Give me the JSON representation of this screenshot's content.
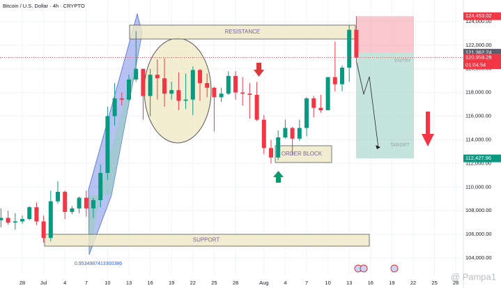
{
  "chart_data": {
    "type": "candlestick",
    "title": "Bitcoin / U.S. Dollar · 4h · CRYPTO",
    "x": [
      "Jun 25",
      "Jun 26",
      "Jun 27",
      "Jun 28",
      "Jun 29",
      "Jun 30",
      "Jul 1",
      "Jul 2",
      "Jul 3",
      "Jul 4",
      "Jul 5",
      "Jul 6",
      "Jul 7",
      "Jul 8",
      "Jul 9",
      "Jul 10",
      "Jul 11",
      "Jul 12",
      "Jul 13",
      "Jul 14",
      "Jul 15",
      "Jul 16",
      "Jul 17",
      "Jul 18",
      "Jul 19",
      "Jul 20",
      "Jul 21",
      "Jul 22",
      "Jul 23",
      "Jul 24",
      "Jul 25",
      "Jul 26",
      "Jul 27",
      "Jul 28",
      "Jul 29",
      "Jul 30",
      "Jul 31",
      "Aug 1",
      "Aug 2",
      "Aug 3",
      "Aug 4",
      "Aug 5",
      "Aug 6",
      "Aug 7",
      "Aug 8",
      "Aug 9",
      "Aug 10",
      "Aug 11",
      "Aug 12",
      "Aug 13",
      "Aug 14"
    ],
    "open": [
      107200,
      107400,
      107000,
      107100,
      107300,
      108300,
      107100,
      105700,
      108800,
      109600,
      107900,
      108200,
      109100,
      108200,
      108900,
      111200,
      116000,
      117500,
      117400,
      119100,
      120000,
      117700,
      119500,
      119200,
      117900,
      118200,
      117300,
      117400,
      119900,
      118800,
      118400,
      117600,
      117900,
      119400,
      118000,
      117900,
      117800,
      115700,
      113300,
      112500,
      114200,
      115000,
      114100,
      115000,
      117500,
      116700,
      116500,
      119300,
      118700,
      120100,
      123300
    ],
    "high": [
      108200,
      108000,
      107800,
      107600,
      108400,
      108700,
      107600,
      109700,
      110500,
      109700,
      108400,
      109200,
      109700,
      109100,
      111900,
      116800,
      118800,
      118000,
      119500,
      123200,
      120000,
      120000,
      120800,
      120900,
      118900,
      119700,
      119600,
      120200,
      120000,
      119600,
      118500,
      118400,
      119800,
      119800,
      119300,
      118800,
      118900,
      116100,
      114000,
      114800,
      115700,
      115100,
      115700,
      117600,
      117700,
      117800,
      119300,
      122300,
      120300,
      123700,
      124453.02
    ],
    "low": [
      106600,
      106800,
      106400,
      106900,
      107200,
      106800,
      105300,
      105400,
      108600,
      107300,
      107700,
      107800,
      107500,
      107400,
      108300,
      110600,
      115200,
      116900,
      117300,
      118900,
      115700,
      116000,
      117400,
      116800,
      117400,
      116500,
      116600,
      116100,
      117300,
      117600,
      114700,
      117200,
      117800,
      117400,
      116900,
      115800,
      115600,
      112800,
      112000,
      112300,
      114100,
      112700,
      113900,
      114300,
      115900,
      116300,
      116500,
      118100,
      118100,
      118900,
      120500
    ],
    "close": [
      107400,
      107000,
      107100,
      107300,
      108300,
      107100,
      105700,
      108800,
      109600,
      107900,
      108200,
      109100,
      108200,
      108900,
      111200,
      116000,
      117500,
      117400,
      119100,
      120000,
      117700,
      119500,
      119200,
      117900,
      118200,
      117300,
      117400,
      119900,
      118800,
      118400,
      117600,
      117900,
      119400,
      118000,
      117900,
      117800,
      115700,
      113300,
      112500,
      114200,
      115000,
      114100,
      115000,
      117500,
      116700,
      116500,
      119300,
      118700,
      120100,
      123300,
      120959.28
    ],
    "up_color": "#089981",
    "down_color": "#f23645",
    "ylim": [
      102530,
      125820
    ],
    "yticks": [
      {
        "value": 104000,
        "label": "104,000.00"
      },
      {
        "value": 106000,
        "label": "106,000.00"
      },
      {
        "value": 108000,
        "label": "108,000.00"
      },
      {
        "value": 110000,
        "label": "110,000.00"
      },
      {
        "value": 112000,
        "label": "112,000.00"
      },
      {
        "value": 114000,
        "label": "114,000.00"
      },
      {
        "value": 116000,
        "label": "116,000.00"
      },
      {
        "value": 118000,
        "label": "118,000.00"
      },
      {
        "value": 120000,
        "label": "120,000.00"
      },
      {
        "value": 122000,
        "label": "122,000.00"
      },
      {
        "value": 124000,
        "label": "124,000.00"
      }
    ],
    "xticks": [
      {
        "value": "Jun 28",
        "label": "28"
      },
      {
        "value": "Jul 1",
        "label": "Jul"
      },
      {
        "value": "Jul 4",
        "label": "4"
      },
      {
        "value": "Jul 7",
        "label": "7"
      },
      {
        "value": "Jul 10",
        "label": "10"
      },
      {
        "value": "Jul 13",
        "label": "13"
      },
      {
        "value": "Jul 16",
        "label": "16"
      },
      {
        "value": "Jul 19",
        "label": "19"
      },
      {
        "value": "Jul 22",
        "label": "22"
      },
      {
        "value": "Jul 25",
        "label": "25"
      },
      {
        "value": "Jul 28",
        "label": "28"
      },
      {
        "value": "Aug 1",
        "label": "Aug"
      },
      {
        "value": "Aug 4",
        "label": "4"
      },
      {
        "value": "Aug 7",
        "label": "7"
      },
      {
        "value": "Aug 10",
        "label": "10"
      },
      {
        "value": "Aug 13",
        "label": "13"
      },
      {
        "value": "Aug 16",
        "label": "16"
      },
      {
        "value": "Aug 19",
        "label": "19"
      },
      {
        "value": "Aug 22",
        "label": "22"
      },
      {
        "value": "Aug 25",
        "label": "25"
      },
      {
        "value": "Aug 28",
        "label": "28"
      }
    ],
    "grid": true,
    "price_labels": [
      {
        "value": 124453.02,
        "label": "124,453.02",
        "color": "#f23645"
      },
      {
        "value": 121362.24,
        "label": "121,362.24",
        "color": "#5d606b"
      },
      {
        "value": 120959.28,
        "label": "120,959.28",
        "color": "#f23645"
      },
      {
        "value": 112427.96,
        "label": "112,427.96",
        "color": "#089981"
      }
    ],
    "countdown": "01:04:54",
    "annotations": {
      "resistance": "RESISTANCE",
      "support": "SUPPORT",
      "order_block": "ORDER BLOCK",
      "entry": "ENTRY",
      "target": "TARGET",
      "fib": "0.9534987413300386"
    },
    "watermark": "@ Pampa1"
  }
}
